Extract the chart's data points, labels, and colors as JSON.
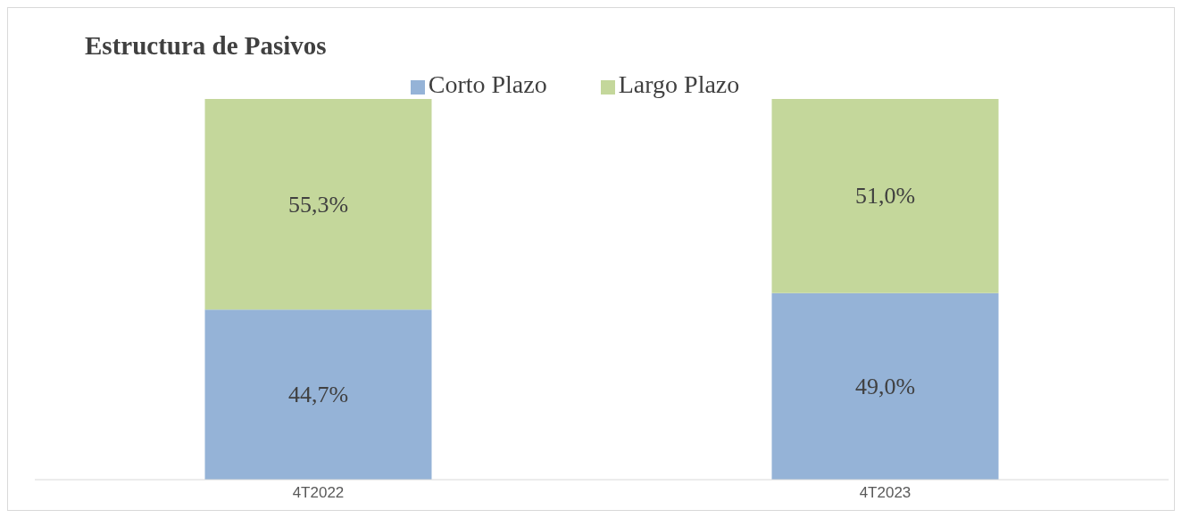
{
  "chart_data": {
    "type": "bar",
    "title": "Estructura de Pasivos",
    "categories": [
      "4T2022",
      "4T2023"
    ],
    "stacked": true,
    "legend": "top",
    "series": [
      {
        "name": "Corto Plazo",
        "color": "#95b3d7",
        "values": [
          44.7,
          49.0
        ],
        "value_labels": [
          "44,7%",
          "49,0%"
        ]
      },
      {
        "name": "Largo Plazo",
        "color": "#c4d79b",
        "values": [
          55.3,
          51.0
        ],
        "value_labels": [
          "55,3%",
          "51,0%"
        ]
      }
    ]
  }
}
